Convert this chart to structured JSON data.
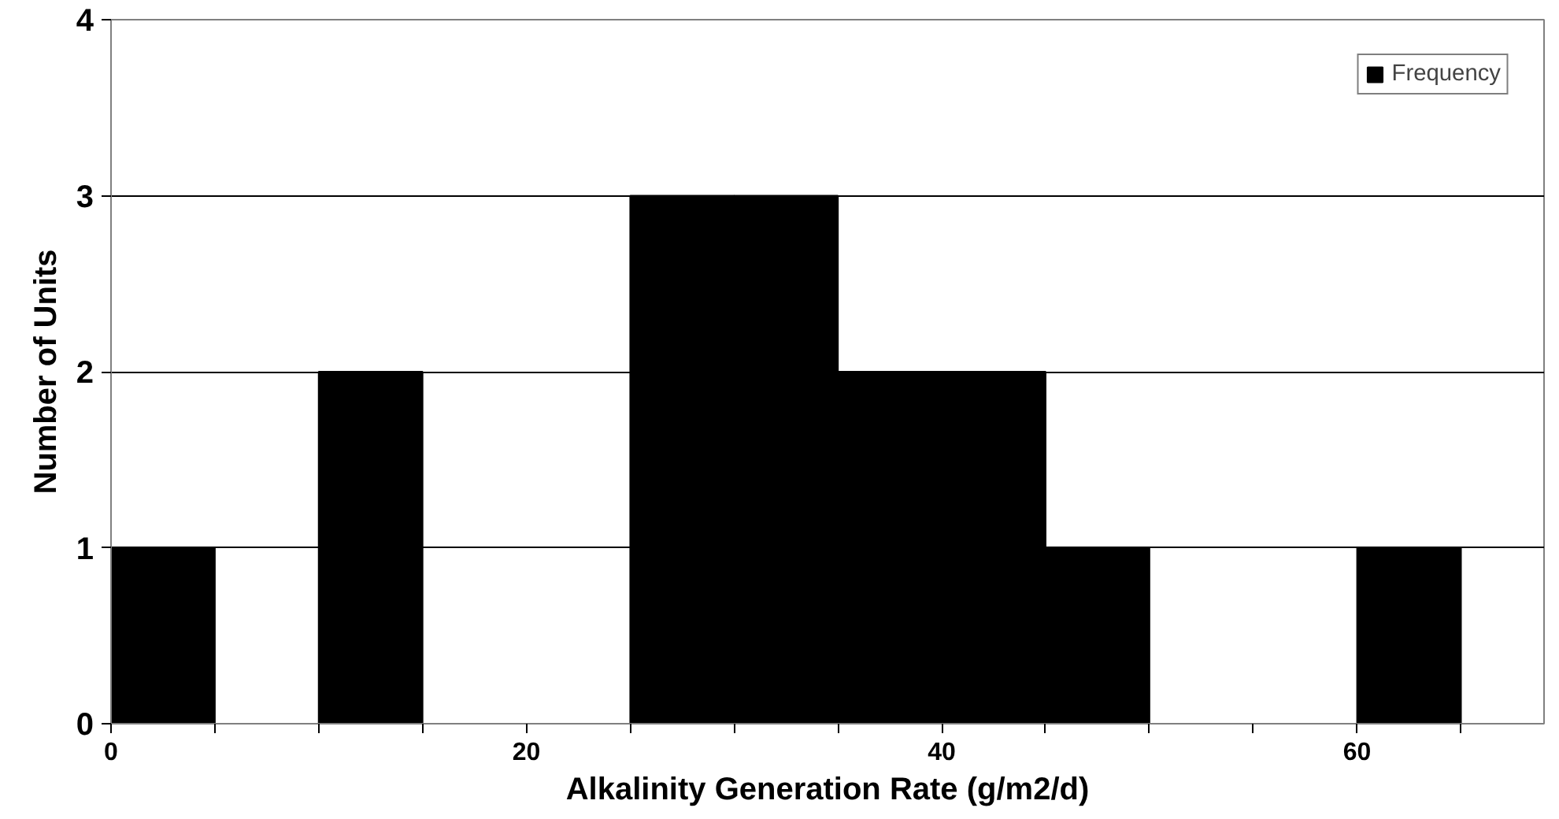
{
  "chart_data": {
    "type": "histogram",
    "xlabel": "Alkalinity Generation Rate (g/m2/d)",
    "ylabel": "Number of Units",
    "bins": [
      0,
      5,
      10,
      15,
      20,
      25,
      30,
      35,
      40,
      45,
      50,
      55,
      60,
      65
    ],
    "series": [
      {
        "name": "Frequency",
        "color": "#000000",
        "values": [
          1,
          0,
          2,
          0,
          0,
          3,
          3,
          2,
          2,
          1,
          0,
          0,
          1
        ]
      }
    ],
    "xlim": [
      0,
      69
    ],
    "xticks": [
      0,
      {
        "value": 5,
        "label": null
      },
      {
        "value": 10,
        "label": null
      },
      {
        "value": 15,
        "label": null
      },
      20,
      {
        "value": 25,
        "label": null
      },
      {
        "value": 30,
        "label": null
      },
      {
        "value": 35,
        "label": null
      },
      40,
      {
        "value": 45,
        "label": null
      },
      {
        "value": 50,
        "label": null
      },
      {
        "value": 55,
        "label": null
      },
      60,
      {
        "value": 65,
        "label": null
      }
    ],
    "ylim": [
      0,
      4
    ],
    "yticks": [
      0,
      1,
      2,
      3,
      4
    ],
    "grid": "y",
    "legend": "top right"
  }
}
